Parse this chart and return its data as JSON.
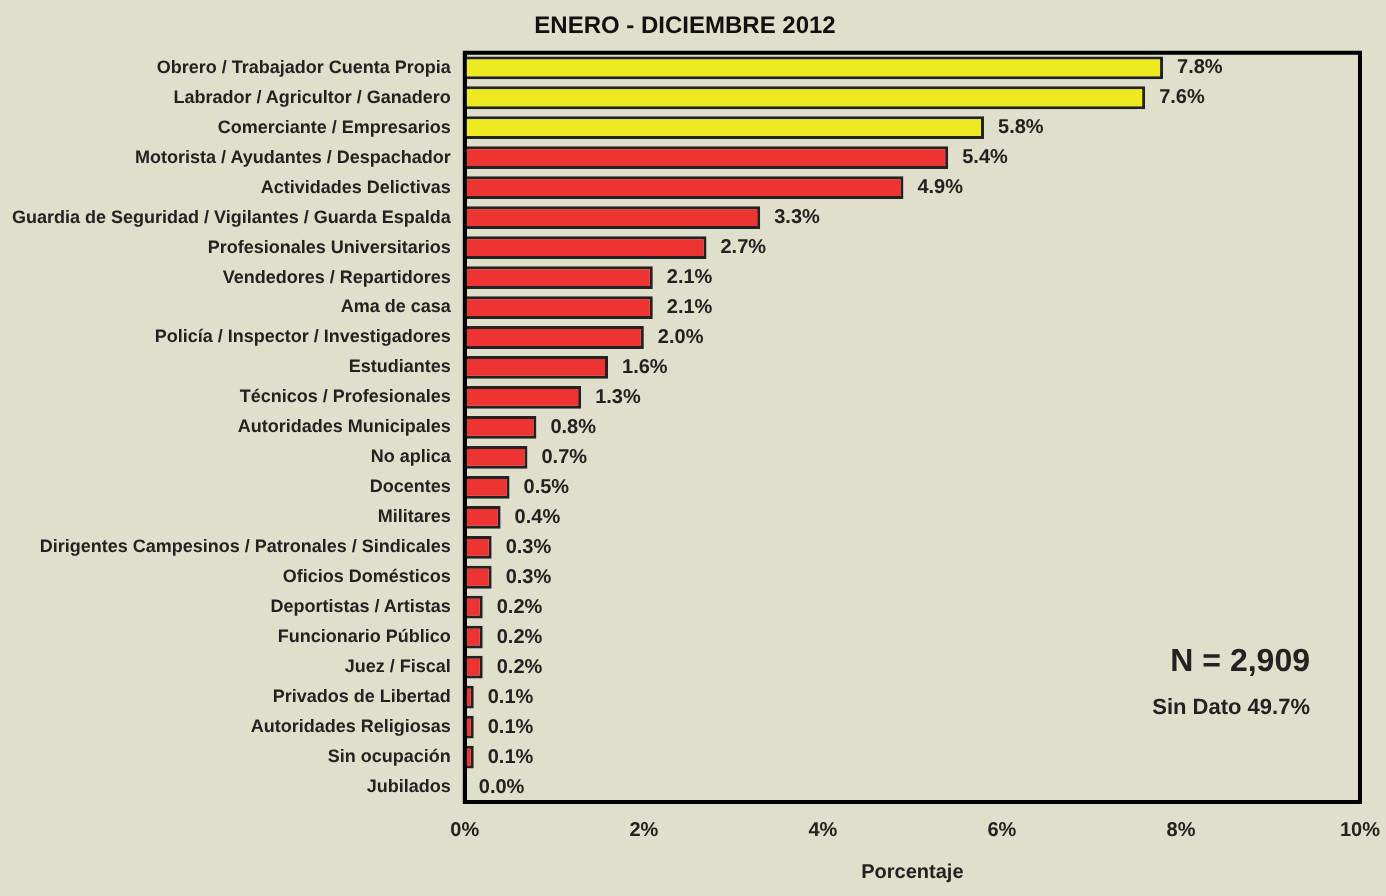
{
  "chart_data": {
    "type": "bar",
    "orientation": "horizontal",
    "title": "ENERO - DICIEMBRE 2012",
    "xlabel": "Porcentaje",
    "categories": [
      "Obrero / Trabajador Cuenta Propia",
      "Labrador / Agricultor / Ganadero",
      "Comerciante / Empresarios",
      "Motorista / Ayudantes / Despachador",
      "Actividades Delictivas",
      "Guardia de Seguridad / Vigilantes / Guarda Espalda",
      "Profesionales Universitarios",
      "Vendedores / Repartidores",
      "Ama de casa",
      "Policía / Inspector / Investigadores",
      "Estudiantes",
      "Técnicos / Profesionales",
      "Autoridades Municipales",
      "No aplica",
      "Docentes",
      "Militares",
      "Dirigentes Campesinos / Patronales / Sindicales",
      "Oficios Domésticos",
      "Deportistas / Artistas",
      "Funcionario Público",
      "Juez / Fiscal",
      "Privados de Libertad",
      "Autoridades Religiosas",
      "Sin ocupación",
      "Jubilados"
    ],
    "values": [
      7.8,
      7.6,
      5.8,
      5.4,
      4.9,
      3.3,
      2.7,
      2.1,
      2.1,
      2.0,
      1.6,
      1.3,
      0.8,
      0.7,
      0.5,
      0.4,
      0.3,
      0.3,
      0.2,
      0.2,
      0.2,
      0.1,
      0.1,
      0.1,
      0.0
    ],
    "value_labels": [
      "7.8%",
      "7.6%",
      "5.8%",
      "5.4%",
      "4.9%",
      "3.3%",
      "2.7%",
      "2.1%",
      "2.1%",
      "2.0%",
      "1.6%",
      "1.3%",
      "0.8%",
      "0.7%",
      "0.5%",
      "0.4%",
      "0.3%",
      "0.3%",
      "0.2%",
      "0.2%",
      "0.2%",
      "0.1%",
      "0.1%",
      "0.1%",
      "0.0%"
    ],
    "colors": [
      "#eeea22",
      "#eeea22",
      "#eeea22",
      "#ee3333",
      "#ee3333",
      "#ee3333",
      "#ee3333",
      "#ee3333",
      "#ee3333",
      "#ee3333",
      "#ee3333",
      "#ee3333",
      "#ee3333",
      "#ee3333",
      "#ee3333",
      "#ee3333",
      "#ee3333",
      "#ee3333",
      "#ee3333",
      "#ee3333",
      "#ee3333",
      "#ee3333",
      "#ee3333",
      "#ee3333",
      "#ee3333"
    ],
    "xlim": [
      0,
      10
    ],
    "xticks": [
      {
        "value": 0,
        "label": "0%"
      },
      {
        "value": 2,
        "label": "2%"
      },
      {
        "value": 4,
        "label": "4%"
      },
      {
        "value": 6,
        "label": "6%"
      },
      {
        "value": 8,
        "label": "8%"
      },
      {
        "value": 10,
        "label": "10%"
      }
    ],
    "annotations": [
      "N = 2,909",
      "Sin Dato 49.7%"
    ],
    "grid": false,
    "legend": false
  }
}
